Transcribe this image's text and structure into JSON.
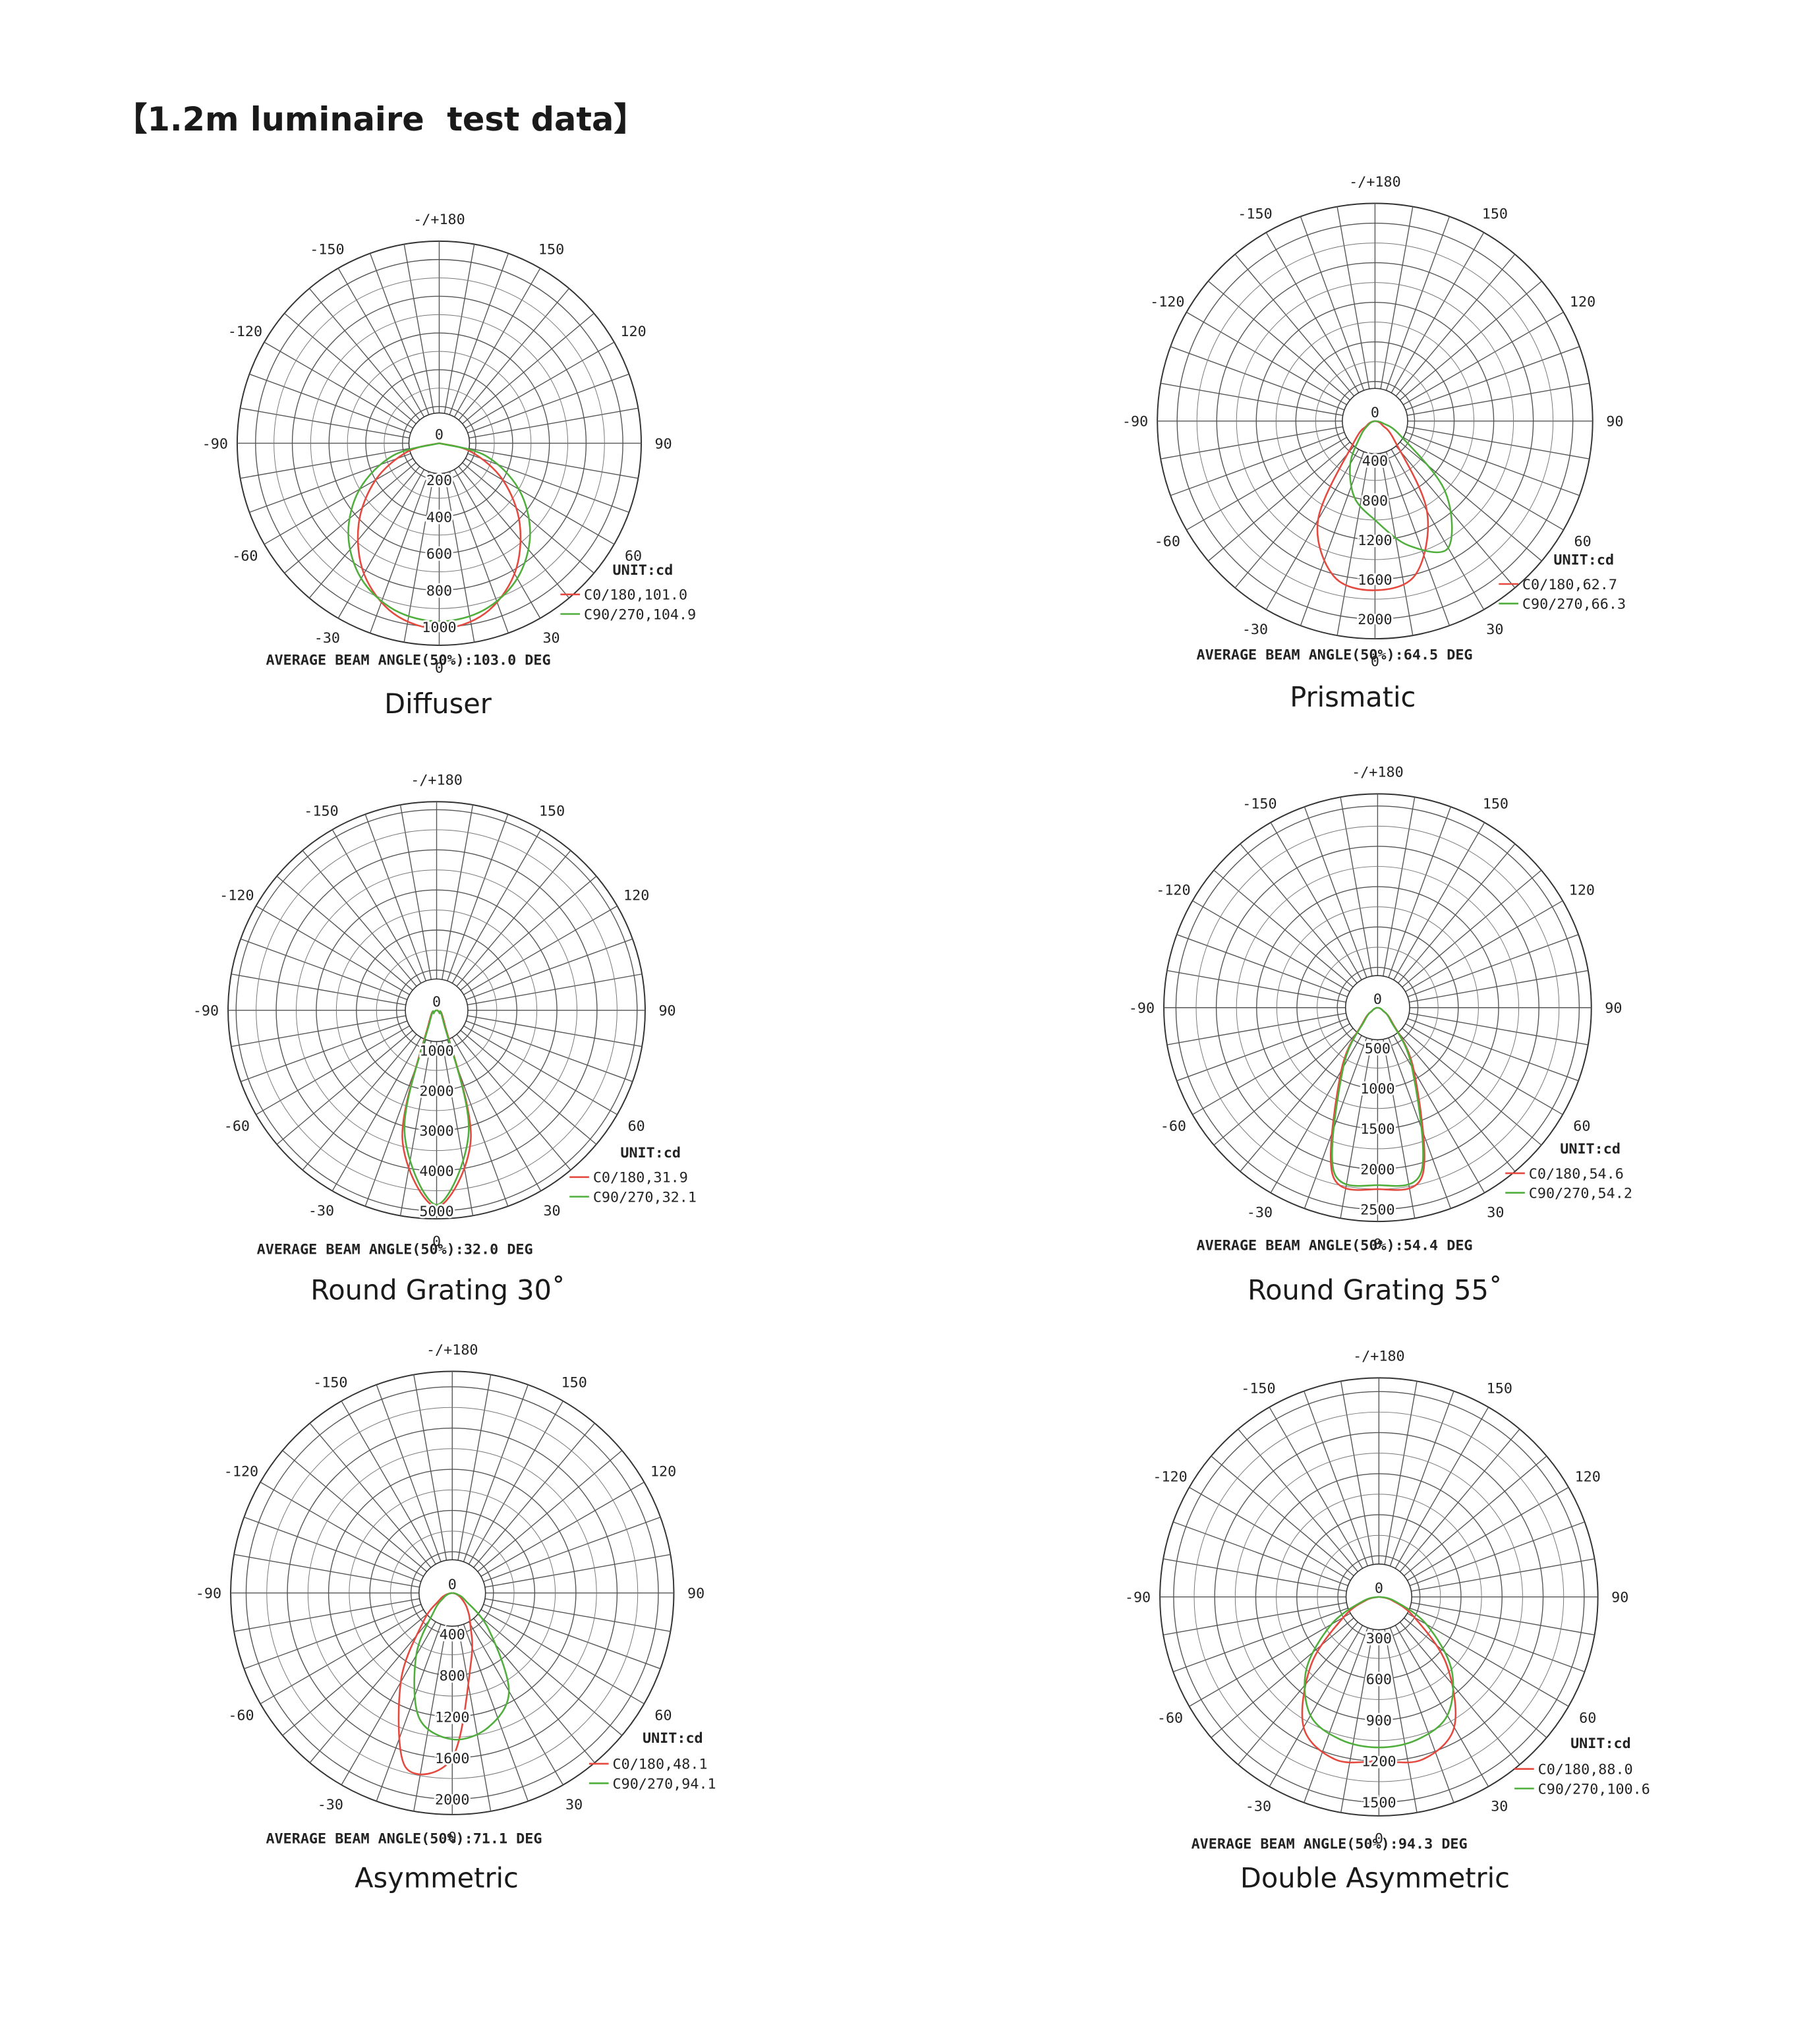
{
  "page_title": "【1.2m luminaire  test data】",
  "chart_data": [
    {
      "type": "polar",
      "title": "Diffuser",
      "annotation": "AVERAGE BEAM ANGLE(50%):103.0 DEG",
      "unit_label": "UNIT:cd",
      "x": [
        -90,
        -75,
        -60,
        -45,
        -30,
        -15,
        0,
        15,
        30,
        45,
        60,
        75,
        90
      ],
      "series": [
        {
          "name": "C0/180,101.0",
          "color": "#e5483e",
          "values": [
            0,
            180,
            400,
            620,
            820,
            960,
            1010,
            960,
            820,
            620,
            400,
            180,
            0
          ]
        },
        {
          "name": "C90/270,104.9",
          "color": "#4fae3c",
          "values": [
            0,
            260,
            500,
            700,
            850,
            940,
            970,
            940,
            850,
            700,
            500,
            260,
            0
          ]
        }
      ],
      "rlim": [
        0,
        1100
      ],
      "rticks": [
        0,
        200,
        400,
        600,
        800,
        1000
      ],
      "angle_ticks": [
        {
          "value": 180,
          "label": "-/+180"
        },
        -150,
        150,
        -120,
        120,
        -90,
        90,
        -60,
        60,
        -30,
        30,
        0
      ]
    },
    {
      "type": "polar",
      "title": "Prismatic",
      "annotation": "AVERAGE BEAM ANGLE(50%):64.5 DEG",
      "unit_label": "UNIT:cd",
      "x": [
        -90,
        -75,
        -60,
        -45,
        -30,
        -15,
        0,
        15,
        30,
        45,
        60,
        75,
        90
      ],
      "series": [
        {
          "name": "C0/180,62.7",
          "color": "#e5483e",
          "values": [
            0,
            40,
            100,
            300,
            1150,
            1620,
            1710,
            1600,
            1050,
            280,
            90,
            40,
            0
          ]
        },
        {
          "name": "C90/270,66.3",
          "color": "#4fae3c",
          "values": [
            0,
            30,
            80,
            200,
            500,
            800,
            1000,
            1300,
            1480,
            1000,
            300,
            80,
            0
          ]
        }
      ],
      "rlim": [
        0,
        2200
      ],
      "rticks": [
        0,
        400,
        800,
        1200,
        1600,
        2000
      ],
      "angle_ticks": [
        {
          "value": 180,
          "label": "-/+180"
        },
        -150,
        150,
        -120,
        120,
        -90,
        90,
        -60,
        60,
        -30,
        30,
        0
      ]
    },
    {
      "type": "polar",
      "title": "Round Grating 30˚",
      "annotation": "AVERAGE BEAM ANGLE(50%):32.0 DEG",
      "unit_label": "UNIT:cd",
      "x": [
        -90,
        -75,
        -60,
        -45,
        -30,
        -15,
        0,
        15,
        30,
        45,
        60,
        75,
        90
      ],
      "series": [
        {
          "name": "C0/180,31.9",
          "color": "#e5483e",
          "values": [
            0,
            20,
            50,
            100,
            400,
            3300,
            4900,
            3300,
            400,
            100,
            50,
            20,
            0
          ]
        },
        {
          "name": "C90/270,32.1",
          "color": "#4fae3c",
          "values": [
            0,
            20,
            50,
            100,
            350,
            3100,
            4850,
            3100,
            350,
            100,
            50,
            20,
            0
          ]
        }
      ],
      "rlim": [
        0,
        5200
      ],
      "rticks": [
        0,
        1000,
        2000,
        3000,
        4000,
        5000
      ],
      "angle_ticks": [
        {
          "value": 180,
          "label": "-/+180"
        },
        -150,
        150,
        -120,
        120,
        -90,
        90,
        -60,
        60,
        -30,
        30,
        0
      ]
    },
    {
      "type": "polar",
      "title": "Round Grating 55˚",
      "annotation": "AVERAGE BEAM ANGLE(50%):54.4 DEG",
      "unit_label": "UNIT:cd",
      "x": [
        -90,
        -75,
        -60,
        -45,
        -30,
        -15,
        0,
        15,
        30,
        45,
        60,
        75,
        90
      ],
      "series": [
        {
          "name": "C0/180,54.6",
          "color": "#e5483e",
          "values": [
            0,
            30,
            80,
            250,
            900,
            2150,
            2250,
            2150,
            900,
            250,
            80,
            30,
            0
          ]
        },
        {
          "name": "C90/270,54.2",
          "color": "#4fae3c",
          "values": [
            0,
            30,
            80,
            230,
            850,
            2100,
            2200,
            2100,
            850,
            230,
            80,
            30,
            0
          ]
        }
      ],
      "rlim": [
        0,
        2650
      ],
      "rticks": [
        0,
        500,
        1000,
        1500,
        2000,
        2500
      ],
      "angle_ticks": [
        {
          "value": 180,
          "label": "-/+180"
        },
        -150,
        150,
        -120,
        120,
        -90,
        90,
        -60,
        60,
        -30,
        30,
        0
      ]
    },
    {
      "type": "polar",
      "title": "Asymmetric",
      "annotation": "AVERAGE BEAM ANGLE(50%):71.1 DEG",
      "unit_label": "UNIT:cd",
      "x": [
        -90,
        -75,
        -60,
        -45,
        -30,
        -15,
        0,
        15,
        30,
        45,
        60,
        75,
        90
      ],
      "series": [
        {
          "name": "C0/180,48.1",
          "color": "#e5483e",
          "values": [
            0,
            60,
            150,
            400,
            1000,
            1750,
            1600,
            700,
            350,
            200,
            100,
            40,
            0
          ]
        },
        {
          "name": "C90/270,94.1",
          "color": "#4fae3c",
          "values": [
            0,
            40,
            100,
            250,
            700,
            1250,
            1420,
            1350,
            1100,
            500,
            150,
            50,
            0
          ]
        }
      ],
      "rlim": [
        0,
        2150
      ],
      "rticks": [
        0,
        400,
        800,
        1200,
        1600,
        2000
      ],
      "angle_ticks": [
        {
          "value": 180,
          "label": "-/+180"
        },
        -150,
        150,
        -120,
        120,
        -90,
        90,
        -60,
        60,
        -30,
        30,
        0
      ]
    },
    {
      "type": "polar",
      "title": "Double Asymmetric",
      "annotation": "AVERAGE BEAM ANGLE(50%):94.3 DEG",
      "unit_label": "UNIT:cd",
      "x": [
        -90,
        -75,
        -60,
        -45,
        -30,
        -15,
        0,
        15,
        30,
        45,
        60,
        75,
        90
      ],
      "series": [
        {
          "name": "C0/180,88.0",
          "color": "#e5483e",
          "values": [
            0,
            100,
            300,
            700,
            1100,
            1230,
            1200,
            1230,
            1100,
            700,
            300,
            100,
            0
          ]
        },
        {
          "name": "C90/270,100.6",
          "color": "#4fae3c",
          "values": [
            0,
            120,
            400,
            750,
            1000,
            1080,
            1100,
            1080,
            1000,
            750,
            400,
            120,
            0
          ]
        }
      ],
      "rlim": [
        0,
        1600
      ],
      "rticks": [
        0,
        300,
        600,
        900,
        1200,
        1500
      ],
      "angle_ticks": [
        {
          "value": 180,
          "label": "-/+180"
        },
        -150,
        150,
        -120,
        120,
        -90,
        90,
        -60,
        60,
        -30,
        30,
        0
      ]
    }
  ]
}
